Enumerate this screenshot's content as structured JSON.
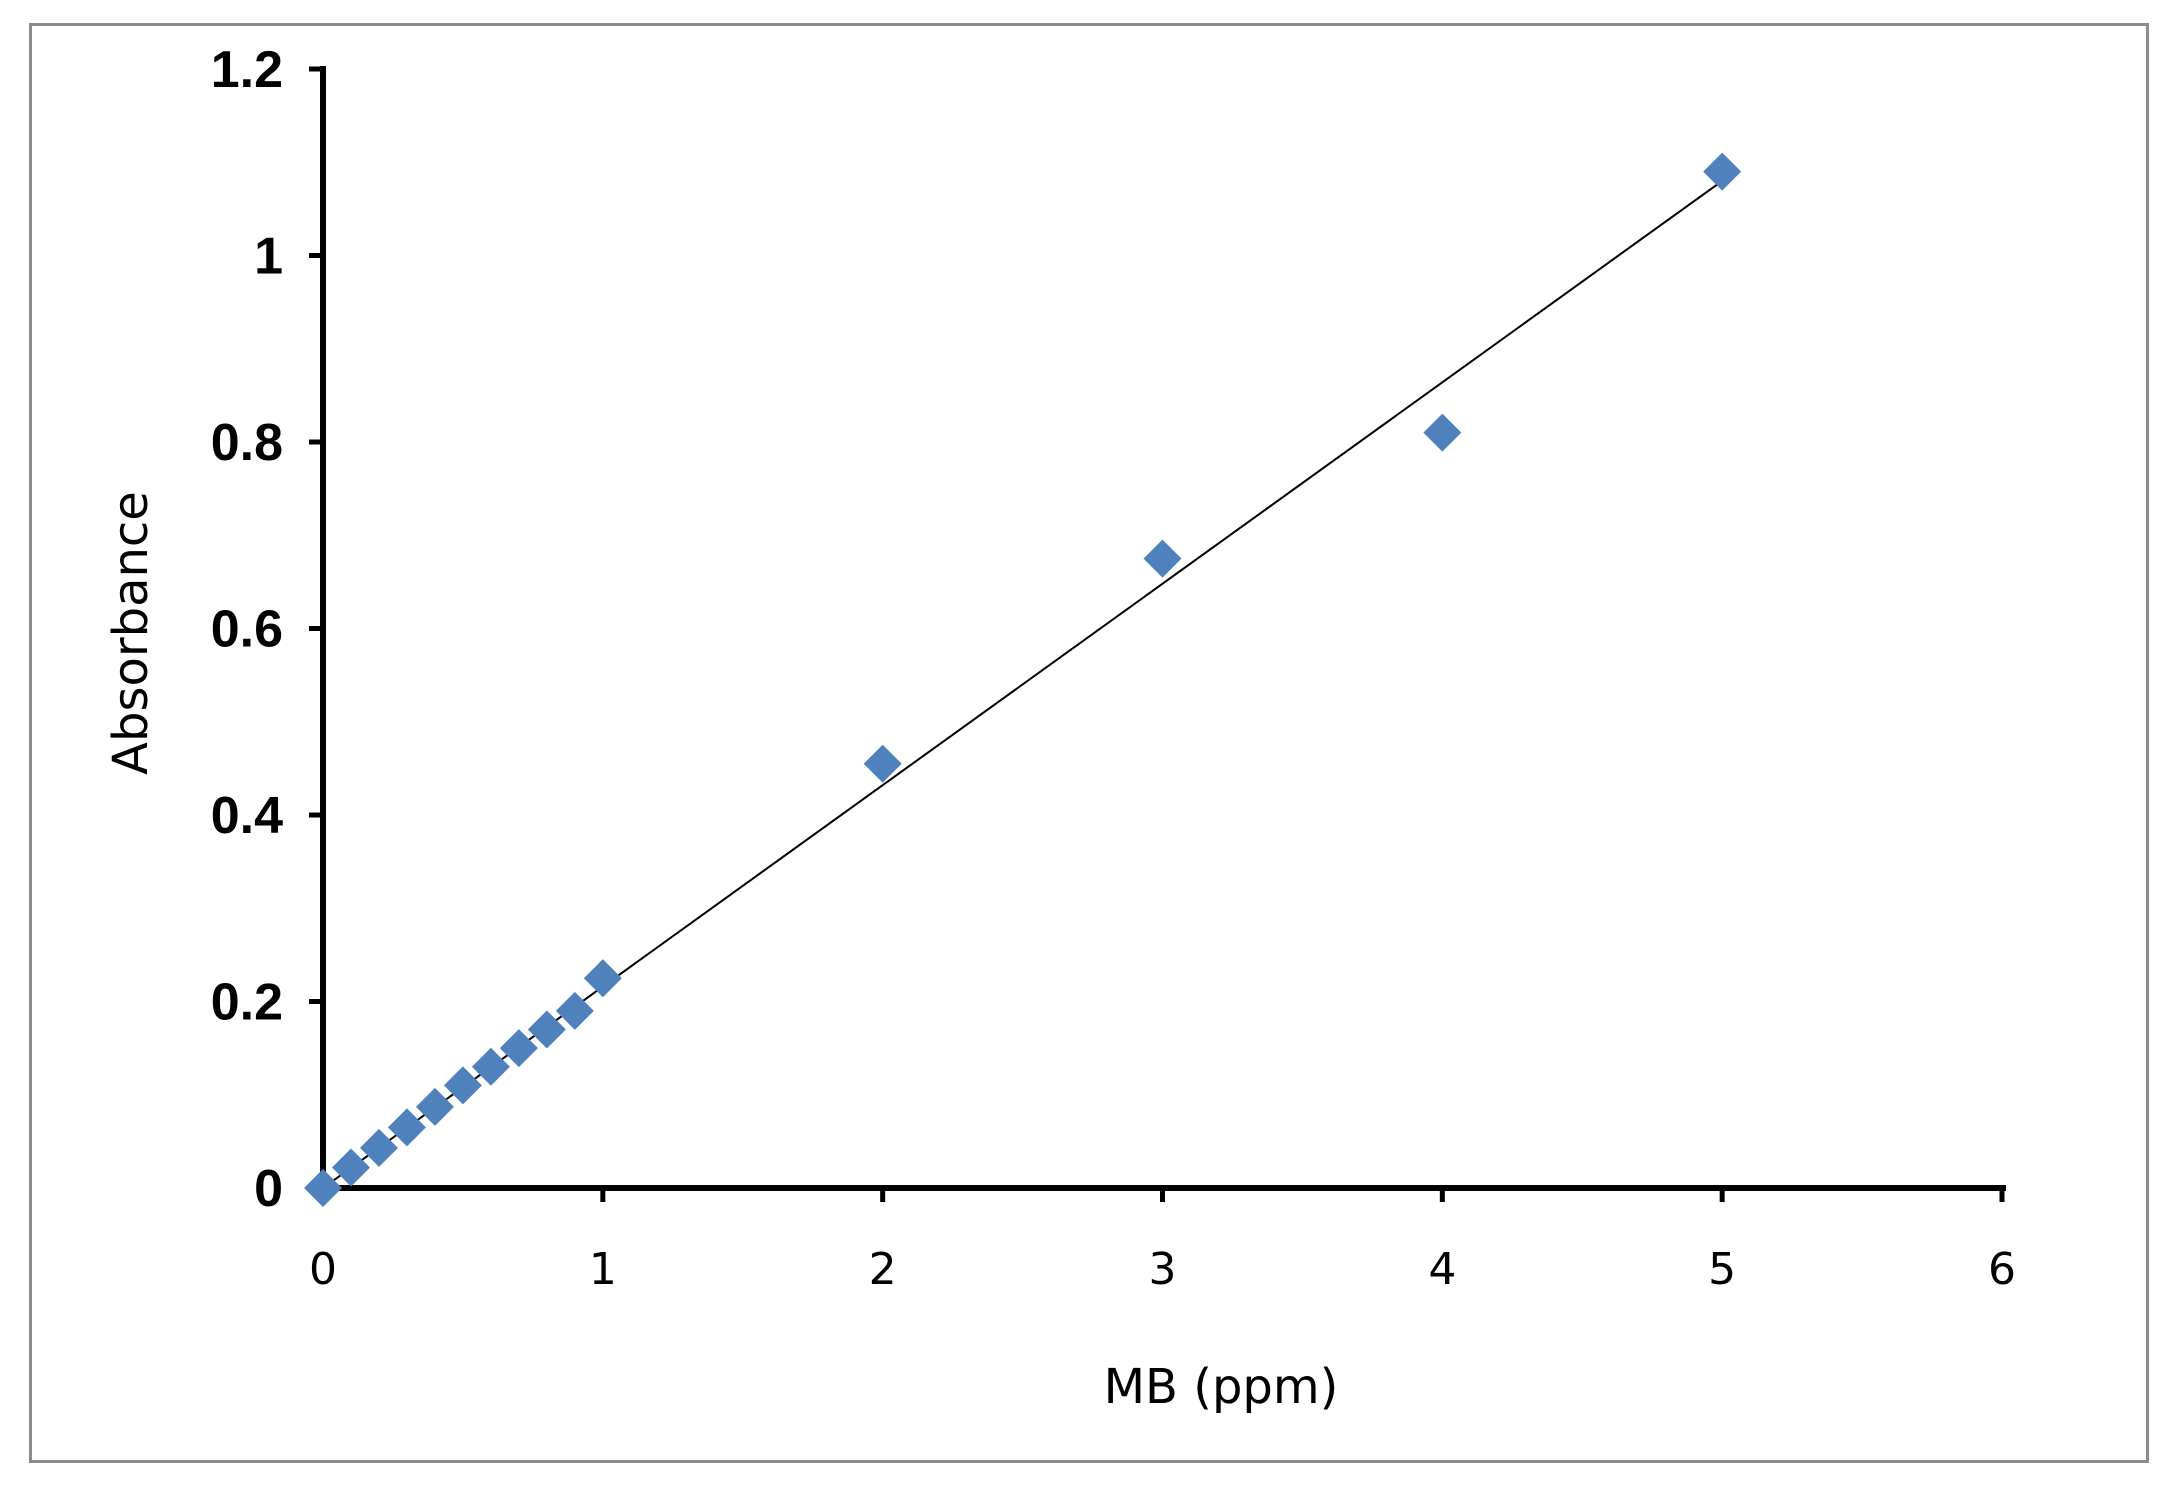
{
  "chart_data": {
    "type": "scatter",
    "title": "",
    "xlabel": "MB (ppm)",
    "ylabel": "Absorbance",
    "xlim": [
      0,
      6
    ],
    "ylim": [
      0,
      1.2
    ],
    "xticks": [
      "0",
      "1",
      "2",
      "3",
      "4",
      "5",
      "6"
    ],
    "yticks": [
      "0",
      "0.2",
      "0.4",
      "0.6",
      "0.8",
      "1",
      "1.2"
    ],
    "grid": false,
    "legend": "none",
    "marker": "diamond",
    "series": [
      {
        "x": [
          0,
          0.1,
          0.2,
          0.3,
          0.4,
          0.5,
          0.6,
          0.7,
          0.8,
          0.9,
          1,
          2,
          3,
          4,
          5
        ],
        "y": [
          0,
          0.022,
          0.043,
          0.065,
          0.087,
          0.11,
          0.13,
          0.15,
          0.17,
          0.19,
          0.225,
          0.455,
          0.675,
          0.81,
          1.09
        ],
        "color": "#4f81bd"
      }
    ],
    "trendline": {
      "type": "linear",
      "x": [
        0,
        5
      ],
      "y": [
        0,
        1.08
      ],
      "color": "#000000"
    }
  }
}
